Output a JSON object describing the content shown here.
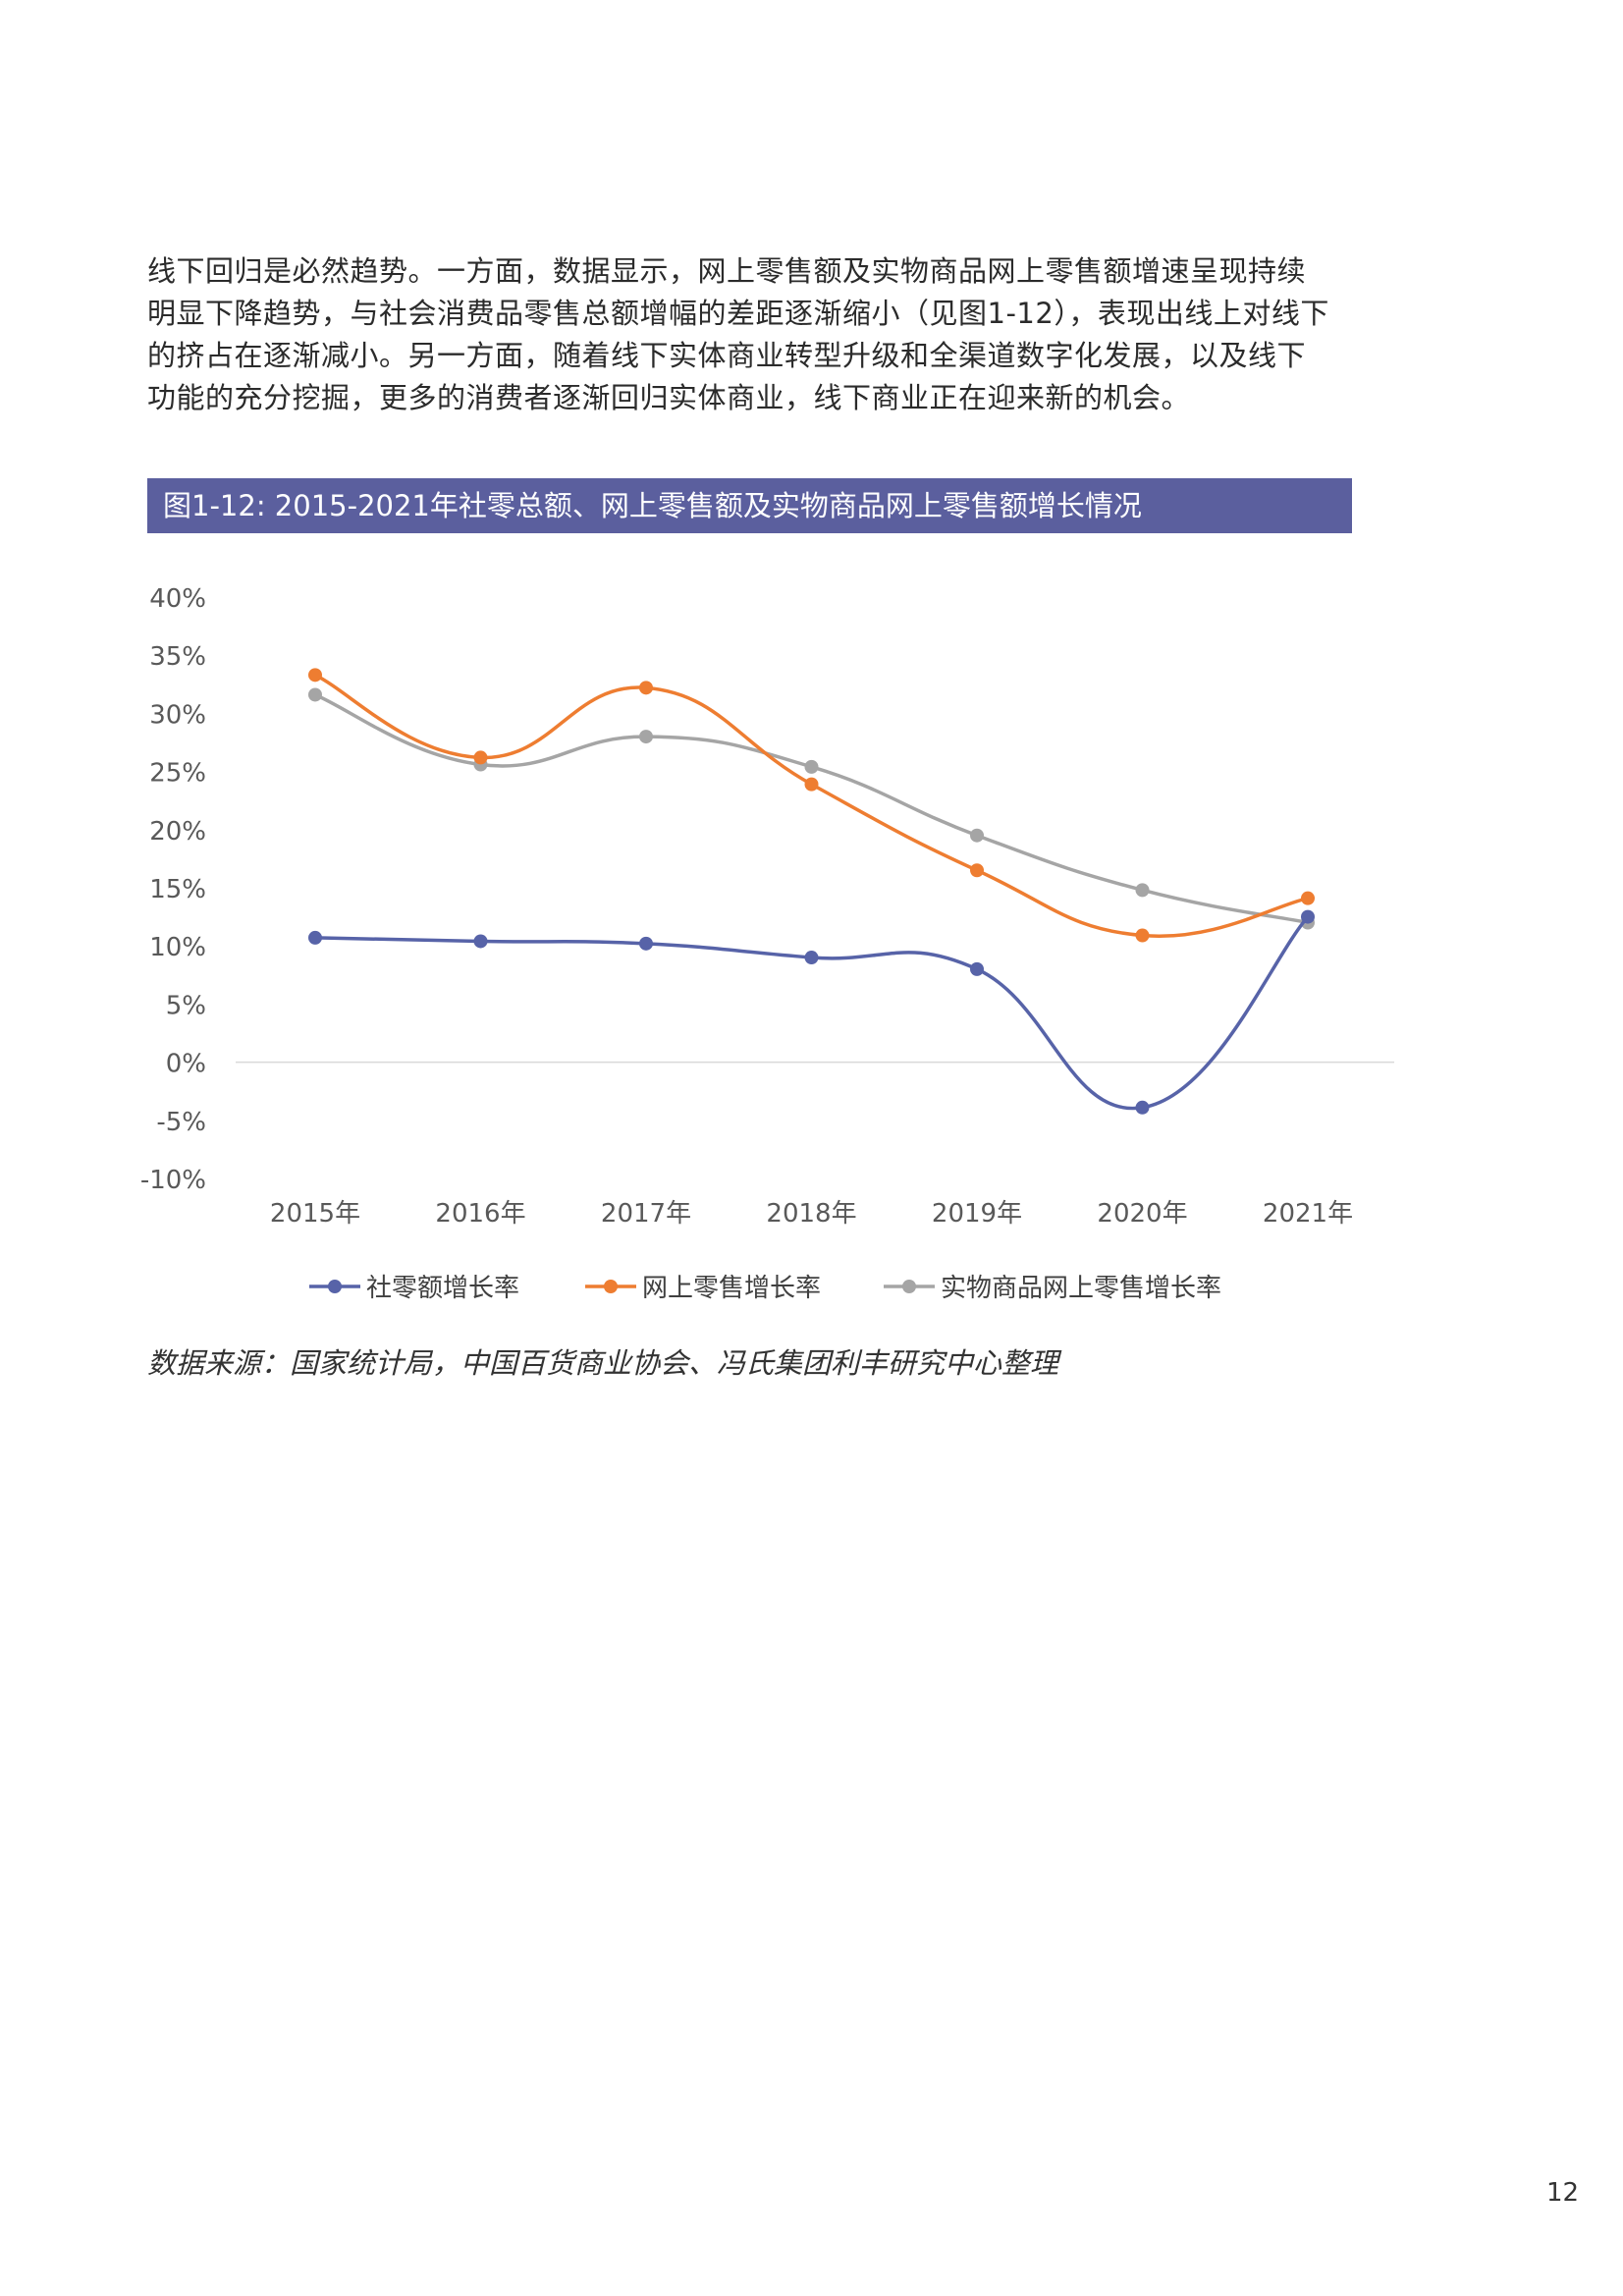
{
  "intro": {
    "lines": [
      "线下回归是必然趋势。一方面，数据显示，网上零售额及实物商品网上零售额增速呈现持续",
      "明显下降趋势，与社会消费品零售总额增幅的差距逐渐缩小（见图1-12），表现出线上对线下",
      "的挤占在逐渐减小。另一方面，随着线下实体商业转型升级和全渠道数字化发展，以及线下",
      "功能的充分挖掘，更多的消费者逐渐回归实体商业，线下商业正在迎来新的机会。"
    ]
  },
  "figure": {
    "banner": "图1-12: 2015-2021年社零总额、网上零售额及实物商品网上零售额增长情况",
    "banner_color": "#5b5f9e"
  },
  "chart_data": {
    "type": "line",
    "categories": [
      "2015年",
      "2016年",
      "2017年",
      "2018年",
      "2019年",
      "2020年",
      "2021年"
    ],
    "series": [
      {
        "name": "社零额增长率",
        "color": "#5763a8",
        "values": [
          10.7,
          10.4,
          10.2,
          9.0,
          8.0,
          -3.9,
          12.5
        ]
      },
      {
        "name": "网上零售增长率",
        "color": "#ee7d31",
        "values": [
          33.3,
          26.2,
          32.2,
          23.9,
          16.5,
          10.9,
          14.1
        ]
      },
      {
        "name": "实物商品网上零售增长率",
        "color": "#a5a5a5",
        "values": [
          31.6,
          25.6,
          28.0,
          25.4,
          19.5,
          14.8,
          12.0
        ]
      }
    ],
    "ylim": [
      -10,
      40
    ],
    "yticks": [
      "40%",
      "35%",
      "30%",
      "25%",
      "20%",
      "15%",
      "10%",
      "5%",
      "0%",
      "-5%",
      "-10%"
    ],
    "ytick_values": [
      40,
      35,
      30,
      25,
      20,
      15,
      10,
      5,
      0,
      -5,
      -10
    ],
    "grid": false,
    "zero_line": true,
    "smooth": true,
    "legend_position": "bottom"
  },
  "source": "数据来源：国家统计局，中国百货商业协会、冯氏集团利丰研究中心整理",
  "page_number": "12"
}
